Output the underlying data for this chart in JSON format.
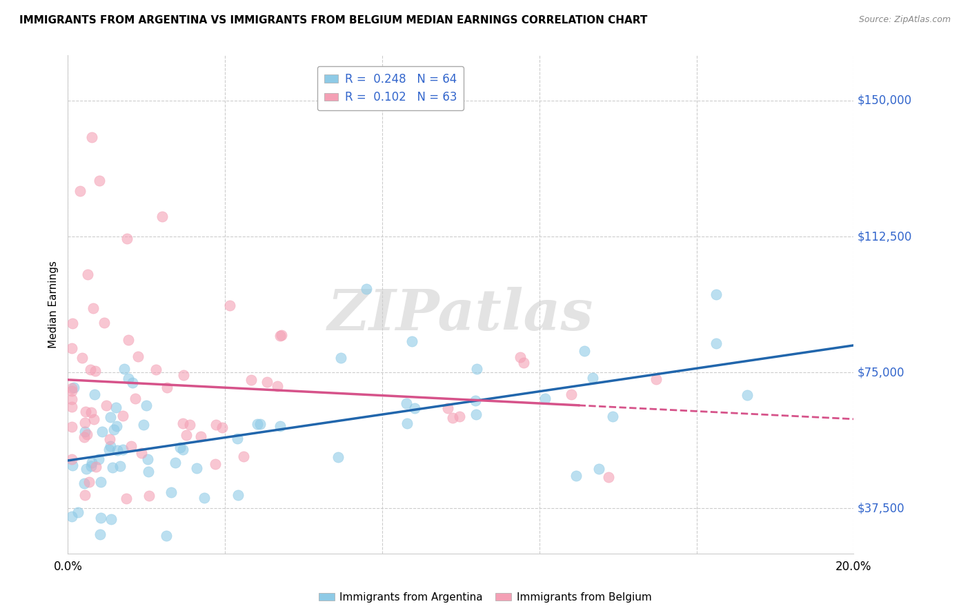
{
  "title": "IMMIGRANTS FROM ARGENTINA VS IMMIGRANTS FROM BELGIUM MEDIAN EARNINGS CORRELATION CHART",
  "source": "Source: ZipAtlas.com",
  "ylabel": "Median Earnings",
  "xlim": [
    0.0,
    0.2
  ],
  "ylim": [
    25000,
    162500
  ],
  "yticks": [
    37500,
    75000,
    112500,
    150000
  ],
  "ytick_labels": [
    "$37,500",
    "$75,000",
    "$112,500",
    "$150,000"
  ],
  "xtick_show": [
    0.0,
    0.2
  ],
  "xtick_labels": [
    "0.0%",
    "20.0%"
  ],
  "argentina_color": "#8ecae6",
  "argentina_color_line": "#2166ac",
  "belgium_color": "#f4a0b5",
  "belgium_color_line": "#d6538a",
  "R_argentina": 0.248,
  "N_argentina": 64,
  "R_belgium": 0.102,
  "N_belgium": 63,
  "watermark": "ZIPatlas",
  "legend_label_1": "Immigrants from Argentina",
  "legend_label_2": "Immigrants from Belgium",
  "blue_label_color": "#3366cc",
  "grid_color": "#cccccc"
}
